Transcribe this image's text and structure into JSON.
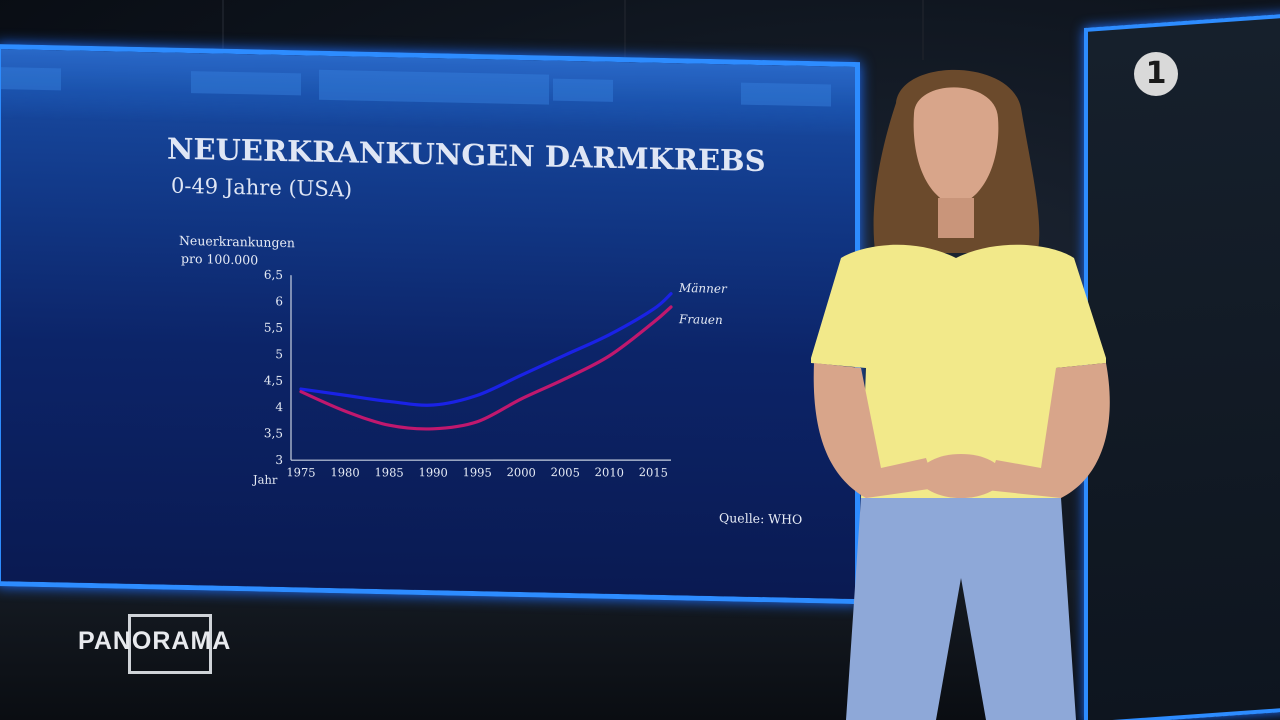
{
  "broadcaster_logo": "1",
  "show_logo": "PANORAMA",
  "chart_data": {
    "type": "line",
    "title": "NEUERKRANKUNGEN DARMKREBS",
    "subtitle": "0-49 Jahre (USA)",
    "ylabel": "Neuerkrankungen pro 100.000",
    "xlabel": "Jahr",
    "ylim": [
      3,
      6.5
    ],
    "xlim": [
      1975,
      2017
    ],
    "y_ticks": [
      "3",
      "3,5",
      "4",
      "4,5",
      "5",
      "5,5",
      "6",
      "6,5"
    ],
    "y_tick_values": [
      3,
      3.5,
      4,
      4.5,
      5,
      5.5,
      6,
      6.5
    ],
    "x_ticks": [
      "1975",
      "1980",
      "1985",
      "1990",
      "1995",
      "2000",
      "2005",
      "2010",
      "2015"
    ],
    "x_tick_values": [
      1975,
      1980,
      1985,
      1990,
      1995,
      2000,
      2005,
      2010,
      2015
    ],
    "series": [
      {
        "name": "Männer",
        "color": "#1a22e6",
        "x": [
          1975,
          1980,
          1985,
          1990,
          1995,
          2000,
          2005,
          2010,
          2015,
          2017
        ],
        "values": [
          4.35,
          4.25,
          4.15,
          4.1,
          4.3,
          4.7,
          5.1,
          5.5,
          6.0,
          6.3
        ]
      },
      {
        "name": "Frauen",
        "color": "#c0186e",
        "x": [
          1975,
          1980,
          1985,
          1990,
          1995,
          2000,
          2005,
          2010,
          2015,
          2017
        ],
        "values": [
          4.3,
          3.95,
          3.7,
          3.65,
          3.8,
          4.25,
          4.65,
          5.1,
          5.75,
          6.05
        ]
      }
    ],
    "source": "Quelle: WHO"
  },
  "colors": {
    "frame_accent": "#2d8cff",
    "blouse": "#f2e98a",
    "trousers": "#8ea8d8"
  }
}
